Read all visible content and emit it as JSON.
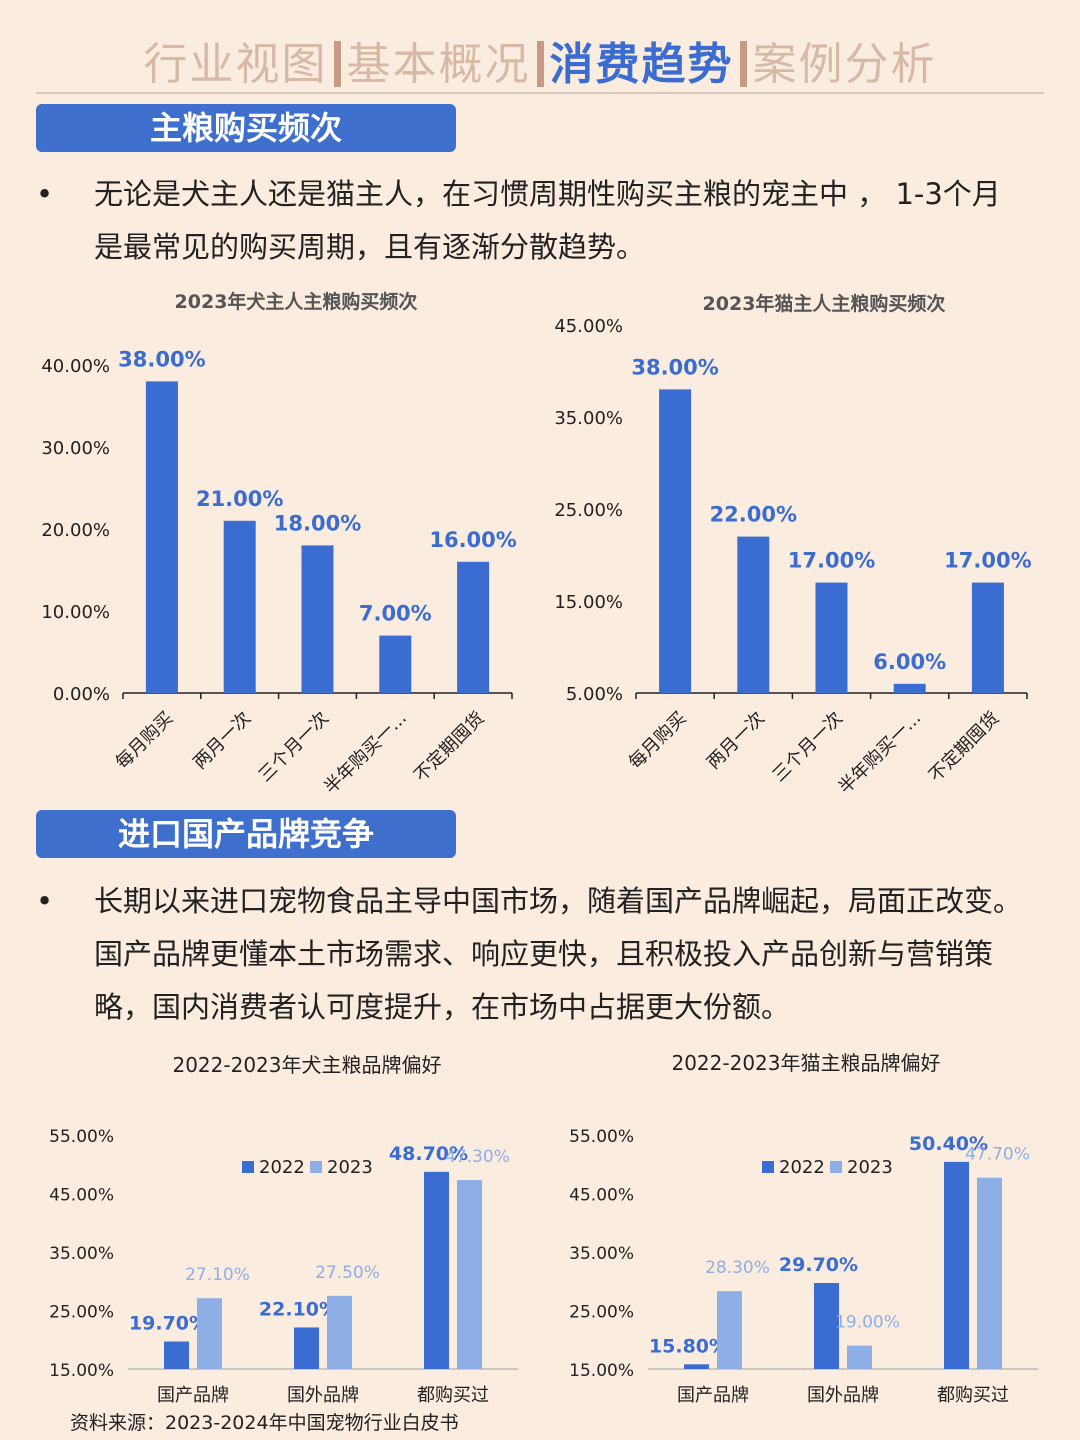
{
  "nav": {
    "tabs": [
      "行业视图",
      "基本概况",
      "消费趋势",
      "案例分析"
    ],
    "active_index": 2
  },
  "colors": {
    "background": "#fbece0",
    "accent": "#3a6cd1",
    "bar_dark": "#3a6cd1",
    "bar_light": "#8eaee6",
    "section_header": "#3e6fcc"
  },
  "section1": {
    "title": "主粮购买频次",
    "bullet": "•",
    "text": "无论是犬主人还是猫主人，在习惯周期性购买主粮的宠主中 ， 1-3个月是最常见的购买周期，且有逐渐分散趋势。"
  },
  "section2": {
    "title": "进口国产品牌竞争",
    "bullet": "•",
    "text": "长期以来进口宠物食品主导中国市场，随着国产品牌崛起，局面正改变。国产品牌更懂本土市场需求、响应更快，且积极投入产品创新与营销策略，国内消费者认可度提升，在市场中占据更大份额。"
  },
  "source": "资料来源：2023-2024年中国宠物行业白皮书",
  "chart_data": [
    {
      "type": "bar",
      "title": "2023年犬主人主粮购买频次",
      "categories": [
        "每月购买",
        "两月一次",
        "三个月一次",
        "半年购买一...",
        "不定期囤货"
      ],
      "values": [
        38,
        21,
        18,
        7,
        16
      ],
      "data_labels": [
        "38.00%",
        "21.00%",
        "18.00%",
        "7.00%",
        "16.00%"
      ],
      "yticks": [
        0,
        10,
        20,
        30,
        40
      ],
      "ytick_labels": [
        "0.00%",
        "10.00%",
        "20.00%",
        "30.00%",
        "40.00%"
      ],
      "ylim": [
        0,
        40
      ],
      "grid": false
    },
    {
      "type": "bar",
      "title": "2023年猫主人主粮购买频次",
      "categories": [
        "每月购买",
        "两月一次",
        "三个月一次",
        "半年购买一...",
        "不定期囤货"
      ],
      "values": [
        38,
        22,
        17,
        6,
        17
      ],
      "data_labels": [
        "38.00%",
        "22.00%",
        "17.00%",
        "6.00%",
        "17.00%"
      ],
      "yticks": [
        5,
        15,
        25,
        35,
        45
      ],
      "ytick_labels": [
        "5.00%",
        "15.00%",
        "25.00%",
        "35.00%",
        "45.00%"
      ],
      "ylim": [
        5,
        45
      ],
      "grid": false
    },
    {
      "type": "bar",
      "title": "2022-2023年犬主粮品牌偏好",
      "categories": [
        "国产品牌",
        "国外品牌",
        "都购买过"
      ],
      "series": [
        {
          "name": "2022",
          "values": [
            19.7,
            22.1,
            48.7
          ],
          "labels": [
            "19.70%",
            "22.10%",
            "48.70%"
          ]
        },
        {
          "name": "2023",
          "values": [
            27.1,
            27.5,
            47.3
          ],
          "labels": [
            "27.10%",
            "27.50%",
            "47.30%"
          ]
        }
      ],
      "yticks": [
        15,
        25,
        35,
        45,
        55
      ],
      "ytick_labels": [
        "15.00%",
        "25.00%",
        "35.00%",
        "45.00%",
        "55.00%"
      ],
      "ylim": [
        15,
        55
      ],
      "legend": "top-center",
      "grid": false
    },
    {
      "type": "bar",
      "title": "2022-2023年猫主粮品牌偏好",
      "categories": [
        "国产品牌",
        "国外品牌",
        "都购买过"
      ],
      "series": [
        {
          "name": "2022",
          "values": [
            15.8,
            29.7,
            50.4
          ],
          "labels": [
            "15.80%",
            "29.70%",
            "50.40%"
          ]
        },
        {
          "name": "2023",
          "values": [
            28.3,
            19.0,
            47.7
          ],
          "labels": [
            "28.30%",
            "19.00%",
            "47.70%"
          ]
        }
      ],
      "yticks": [
        15,
        25,
        35,
        45,
        55
      ],
      "ytick_labels": [
        "15.00%",
        "25.00%",
        "35.00%",
        "45.00%",
        "55.00%"
      ],
      "ylim": [
        15,
        55
      ],
      "legend": "top-center",
      "grid": false
    }
  ]
}
